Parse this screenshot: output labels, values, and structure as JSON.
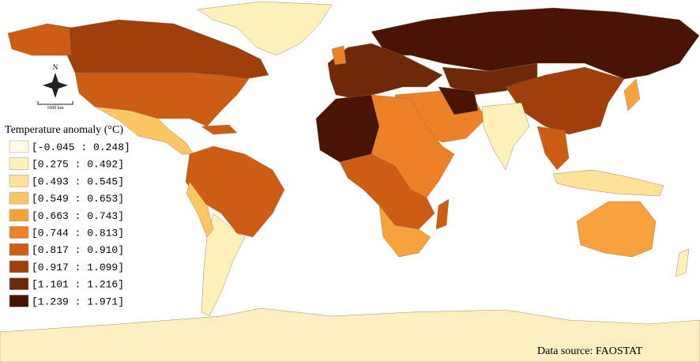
{
  "legend": {
    "title": "Temperature anomaly (°C)",
    "classes": [
      {
        "label": "[-0.045 : 0.248]",
        "color": "#fffae3"
      },
      {
        "label": "[0.275 : 0.492]",
        "color": "#fdf0b8"
      },
      {
        "label": "[0.493 : 0.545]",
        "color": "#fde29a"
      },
      {
        "label": "[0.549 : 0.653]",
        "color": "#fcc664"
      },
      {
        "label": "[0.663 : 0.743]",
        "color": "#f7a23c"
      },
      {
        "label": "[0.744 : 0.813]",
        "color": "#ec8128"
      },
      {
        "label": "[0.817 : 0.910]",
        "color": "#cd5d13"
      },
      {
        "label": "[0.917 : 1.099]",
        "color": "#9e3f0c"
      },
      {
        "label": "[1.101 : 1.216]",
        "color": "#6e2a08"
      },
      {
        "label": "[1.239 : 1.971]",
        "color": "#4a1404"
      }
    ]
  },
  "compass": "N",
  "scale_bar": "1000 km",
  "source": "Data source: FAOSTAT"
}
